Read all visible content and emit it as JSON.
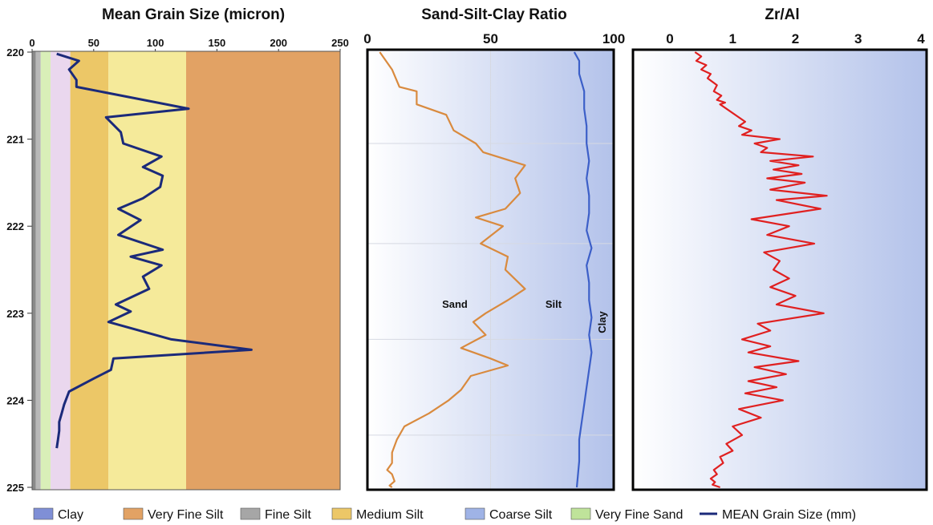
{
  "chart_data": [
    {
      "type": "line",
      "title": "Mean Grain Size (micron)",
      "xlim": [
        0,
        250
      ],
      "x_ticks": [
        "0",
        "50",
        "100",
        "150",
        "200",
        "250"
      ],
      "ylim": [
        220,
        225
      ],
      "y_ticks": [
        "220",
        "221",
        "222",
        "223",
        "224",
        "225"
      ],
      "y_reversed": true,
      "bands": [
        {
          "from": 0,
          "to": 3,
          "color": "#8a8a8a"
        },
        {
          "from": 3,
          "to": 7,
          "color": "#b8b8b8"
        },
        {
          "from": 7,
          "to": 15,
          "color": "#d9efb8"
        },
        {
          "from": 15,
          "to": 31,
          "color": "#ead7ee"
        },
        {
          "from": 31,
          "to": 62,
          "color": "#ecc767"
        },
        {
          "from": 62,
          "to": 125,
          "color": "#f5ea9a"
        },
        {
          "from": 125,
          "to": 250,
          "color": "#e2a264"
        }
      ],
      "series": [
        {
          "name": "MEAN Grain Size (mm)",
          "color": "#1b2a7a",
          "x": [
            20,
            38,
            30,
            36,
            36,
            127,
            60,
            72,
            74,
            105,
            90,
            106,
            104,
            90,
            70,
            88,
            70,
            106,
            80,
            105,
            90,
            95,
            68,
            80,
            62,
            113,
            178,
            66,
            64,
            50,
            30,
            26,
            24,
            22,
            22,
            21,
            20
          ],
          "y": [
            220.02,
            220.1,
            220.2,
            220.32,
            220.4,
            220.65,
            220.75,
            220.92,
            221.05,
            221.2,
            221.32,
            221.42,
            221.55,
            221.68,
            221.8,
            221.93,
            222.1,
            222.27,
            222.35,
            222.45,
            222.58,
            222.72,
            222.9,
            222.98,
            223.1,
            223.3,
            223.42,
            223.52,
            223.65,
            223.75,
            223.9,
            224.05,
            224.15,
            224.25,
            224.35,
            224.45,
            224.55
          ]
        }
      ]
    },
    {
      "type": "line",
      "title": "Sand-Silt-Clay Ratio",
      "xlim": [
        0,
        100
      ],
      "x_ticks": [
        "0",
        "50",
        "100"
      ],
      "ylim": [
        220,
        225
      ],
      "y_reversed": true,
      "annotations": [
        "Sand",
        "Silt",
        "Clay"
      ],
      "series": [
        {
          "color": "#d98a3e",
          "x": [
            5,
            10,
            13,
            20,
            20,
            32,
            35,
            44,
            47,
            64,
            60,
            62,
            56,
            44,
            55,
            46,
            57,
            56,
            64,
            57,
            48,
            43,
            48,
            38,
            50,
            57,
            42,
            38,
            33,
            25,
            15,
            12,
            10,
            10,
            8,
            10,
            11,
            9,
            10
          ],
          "y": [
            220.0,
            220.2,
            220.4,
            220.45,
            220.6,
            220.72,
            220.9,
            221.05,
            221.15,
            221.3,
            221.45,
            221.62,
            221.8,
            221.9,
            222.0,
            222.2,
            222.35,
            222.5,
            222.72,
            222.85,
            223.0,
            223.1,
            223.25,
            223.4,
            223.52,
            223.6,
            223.72,
            223.88,
            224.0,
            224.15,
            224.3,
            224.45,
            224.6,
            224.72,
            224.8,
            224.85,
            224.93,
            224.98,
            225.0
          ]
        },
        {
          "color": "#3c5fc8",
          "x": [
            84,
            86,
            86,
            88,
            88,
            89,
            89,
            90,
            89,
            90,
            90,
            89,
            91,
            89,
            90,
            90,
            91,
            90,
            91,
            90,
            89,
            88,
            87,
            86,
            86,
            85
          ],
          "y": [
            220.0,
            220.1,
            220.25,
            220.45,
            220.65,
            220.85,
            221.05,
            221.25,
            221.45,
            221.65,
            221.85,
            222.05,
            222.25,
            222.45,
            222.65,
            222.85,
            223.05,
            223.25,
            223.45,
            223.65,
            223.85,
            224.05,
            224.25,
            224.45,
            224.7,
            225.0
          ]
        }
      ]
    },
    {
      "type": "line",
      "title": "Zr/Al",
      "xlim": [
        0,
        4
      ],
      "x_ticks": [
        "0",
        "1",
        "2",
        "3",
        "4"
      ],
      "ylim": [
        220,
        225
      ],
      "y_reversed": true,
      "series": [
        {
          "color": "#e02020",
          "x": [
            0.4,
            0.5,
            0.42,
            0.58,
            0.5,
            0.65,
            0.6,
            0.75,
            0.7,
            0.82,
            0.75,
            0.88,
            0.8,
            1.2,
            1.1,
            1.3,
            1.15,
            1.75,
            1.35,
            1.55,
            1.45,
            2.28,
            1.6,
            2.05,
            1.65,
            2.1,
            1.55,
            2.15,
            1.6,
            2.5,
            1.7,
            2.4,
            1.3,
            1.9,
            1.55,
            2.3,
            1.5,
            1.75,
            1.65,
            1.9,
            1.6,
            2.0,
            1.7,
            2.45,
            1.4,
            1.6,
            1.15,
            1.6,
            1.25,
            2.05,
            1.35,
            1.85,
            1.25,
            1.7,
            1.2,
            1.8,
            1.1,
            1.45,
            1.0,
            1.15,
            0.9,
            1.0,
            0.8,
            0.85,
            0.7,
            0.75,
            0.65,
            0.72,
            0.68,
            0.8
          ],
          "y": [
            220.0,
            220.05,
            220.1,
            220.15,
            220.2,
            220.25,
            220.3,
            220.38,
            220.45,
            220.5,
            220.55,
            220.58,
            220.6,
            220.8,
            220.85,
            220.9,
            220.95,
            221.0,
            221.05,
            221.1,
            221.15,
            221.2,
            221.25,
            221.3,
            221.35,
            221.4,
            221.45,
            221.5,
            221.58,
            221.65,
            221.7,
            221.8,
            221.92,
            222.0,
            222.1,
            222.2,
            222.3,
            222.4,
            222.5,
            222.6,
            222.7,
            222.8,
            222.9,
            223.0,
            223.12,
            223.2,
            223.3,
            223.38,
            223.45,
            223.55,
            223.62,
            223.7,
            223.78,
            223.85,
            223.92,
            224.0,
            224.1,
            224.2,
            224.3,
            224.4,
            224.5,
            224.58,
            224.65,
            224.72,
            224.8,
            224.85,
            224.9,
            224.94,
            224.97,
            225.0
          ]
        }
      ]
    }
  ],
  "legend": [
    {
      "label": "Clay",
      "color": "#7f8fd6",
      "kind": "swatch"
    },
    {
      "label": "Very Fine Silt",
      "color": "#e2a264",
      "kind": "swatch"
    },
    {
      "label": "Fine Silt",
      "color": "#a6a6a6",
      "kind": "swatch"
    },
    {
      "label": "Medium Silt",
      "color": "#ecc767",
      "kind": "swatch"
    },
    {
      "label": "Coarse Silt",
      "color": "#9fb3e6",
      "kind": "swatch"
    },
    {
      "label": "Very Fine Sand",
      "color": "#bfe39a",
      "kind": "swatch"
    },
    {
      "label": "MEAN Grain Size (mm)",
      "color": "#1b2a7a",
      "kind": "line"
    }
  ]
}
